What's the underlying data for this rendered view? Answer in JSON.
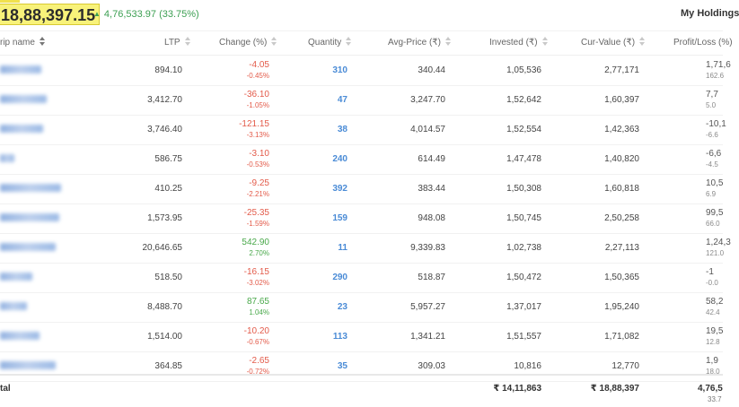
{
  "summary": {
    "current_value": "18,88,397.15",
    "gain": "4,76,533.97 (33.75%)",
    "holdings_title": "My Holdings"
  },
  "columns": [
    "rip name",
    "LTP",
    "Change (%)",
    "Quantity",
    "Avg-Price (₹)",
    "Invested (₹)",
    "Cur-Value (₹)",
    "Profit/Loss (%)"
  ],
  "rows": [
    {
      "ltp": "894.10",
      "chg": "-4.05",
      "chg_pct": "-0.45%",
      "dir": "neg",
      "qty": "310",
      "avg": "340.44",
      "invested": "1,05,536",
      "cur": "2,77,171",
      "pl": "1,71,6",
      "pl_pct": "162.6"
    },
    {
      "ltp": "3,412.70",
      "chg": "-36.10",
      "chg_pct": "-1.05%",
      "dir": "neg",
      "qty": "47",
      "avg": "3,247.70",
      "invested": "1,52,642",
      "cur": "1,60,397",
      "pl": "7,7",
      "pl_pct": "5.0"
    },
    {
      "ltp": "3,746.40",
      "chg": "-121.15",
      "chg_pct": "-3.13%",
      "dir": "neg",
      "qty": "38",
      "avg": "4,014.57",
      "invested": "1,52,554",
      "cur": "1,42,363",
      "pl": "-10,1",
      "pl_pct": "-6.6"
    },
    {
      "ltp": "586.75",
      "chg": "-3.10",
      "chg_pct": "-0.53%",
      "dir": "neg",
      "qty": "240",
      "avg": "614.49",
      "invested": "1,47,478",
      "cur": "1,40,820",
      "pl": "-6,6",
      "pl_pct": "-4.5"
    },
    {
      "ltp": "410.25",
      "chg": "-9.25",
      "chg_pct": "-2.21%",
      "dir": "neg",
      "qty": "392",
      "avg": "383.44",
      "invested": "1,50,308",
      "cur": "1,60,818",
      "pl": "10,5",
      "pl_pct": "6.9"
    },
    {
      "ltp": "1,573.95",
      "chg": "-25.35",
      "chg_pct": "-1.59%",
      "dir": "neg",
      "qty": "159",
      "avg": "948.08",
      "invested": "1,50,745",
      "cur": "2,50,258",
      "pl": "99,5",
      "pl_pct": "66.0"
    },
    {
      "ltp": "20,646.65",
      "chg": "542.90",
      "chg_pct": "2.70%",
      "dir": "pos",
      "qty": "11",
      "avg": "9,339.83",
      "invested": "1,02,738",
      "cur": "2,27,113",
      "pl": "1,24,3",
      "pl_pct": "121.0"
    },
    {
      "ltp": "518.50",
      "chg": "-16.15",
      "chg_pct": "-3.02%",
      "dir": "neg",
      "qty": "290",
      "avg": "518.87",
      "invested": "1,50,472",
      "cur": "1,50,365",
      "pl": "-1",
      "pl_pct": "-0.0"
    },
    {
      "ltp": "8,488.70",
      "chg": "87.65",
      "chg_pct": "1.04%",
      "dir": "pos",
      "qty": "23",
      "avg": "5,957.27",
      "invested": "1,37,017",
      "cur": "1,95,240",
      "pl": "58,2",
      "pl_pct": "42.4"
    },
    {
      "ltp": "1,514.00",
      "chg": "-10.20",
      "chg_pct": "-0.67%",
      "dir": "neg",
      "qty": "113",
      "avg": "1,341.21",
      "invested": "1,51,557",
      "cur": "1,71,082",
      "pl": "19,5",
      "pl_pct": "12.8"
    },
    {
      "ltp": "364.85",
      "chg": "-2.65",
      "chg_pct": "-0.72%",
      "dir": "neg",
      "qty": "35",
      "avg": "309.03",
      "invested": "10,816",
      "cur": "12,770",
      "pl": "1,9",
      "pl_pct": "18.0"
    }
  ],
  "total": {
    "label": "tal",
    "invested": "₹ 14,11,863",
    "cur": "₹ 18,88,397",
    "pl": "4,76,5",
    "pl_pct": "33.7"
  }
}
